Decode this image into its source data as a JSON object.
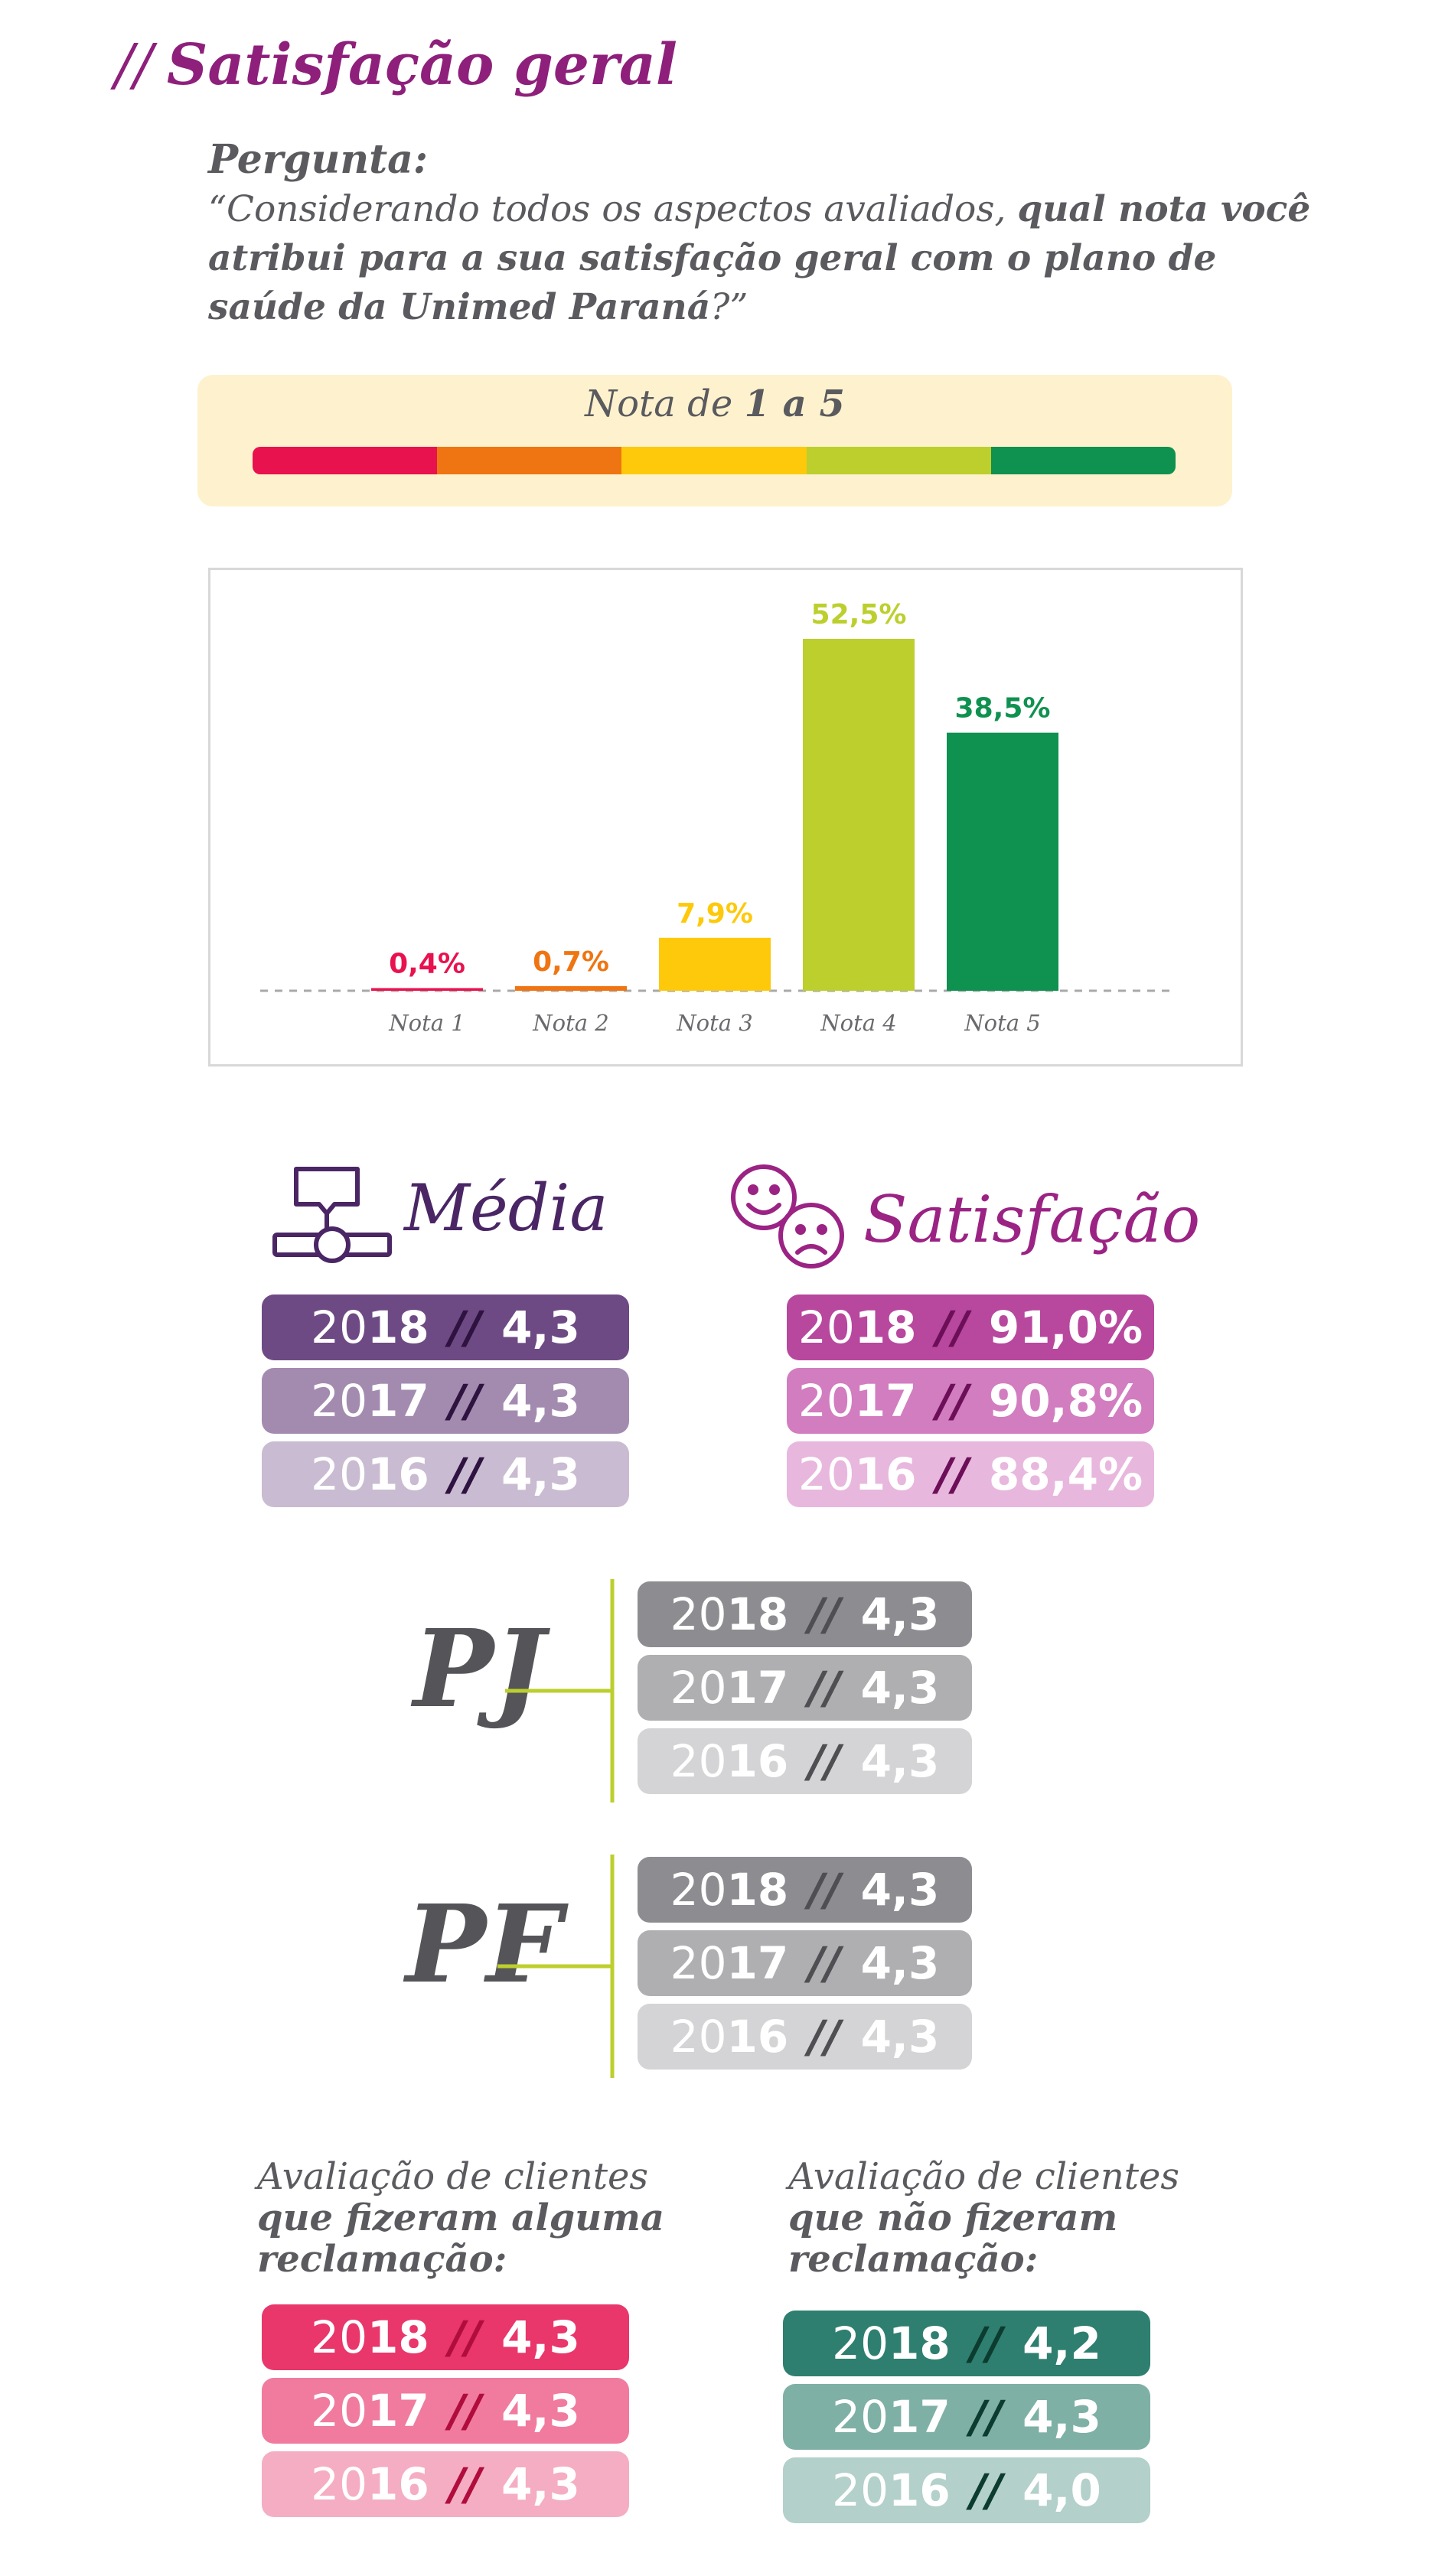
{
  "header": {
    "slashes": "//",
    "title": "Satisfação geral",
    "question_label": "Pergunta:",
    "question_open": "“Considerando todos os aspectos avaliados, ",
    "question_bold": "qual nota você atribui para a sua satisfação geral com o plano de saúde da Unimed Paraná",
    "question_close": "?”"
  },
  "scale": {
    "prefix": "Nota de ",
    "range": "1 a 5",
    "colors": [
      "#e8124f",
      "#ef7512",
      "#fdc90a",
      "#bccf2d",
      "#0f9150"
    ]
  },
  "chart_data": {
    "type": "bar",
    "categories": [
      "Nota 1",
      "Nota 2",
      "Nota 3",
      "Nota 4",
      "Nota 5"
    ],
    "values": [
      0.4,
      0.7,
      7.9,
      52.5,
      38.5
    ],
    "labels": [
      "0,4%",
      "0,7%",
      "7,9%",
      "52,5%",
      "38,5%"
    ],
    "colors": [
      "#e8124f",
      "#ef7512",
      "#fdc90a",
      "#bccf2d",
      "#0f9150"
    ],
    "ylim": [
      0,
      52.5
    ],
    "grid": false,
    "legend": "none"
  },
  "media": {
    "title": "Média",
    "rows": [
      {
        "year": "2018",
        "value": "4,3",
        "bg": "#6e4a84",
        "sep_color": "#2e1240"
      },
      {
        "year": "2017",
        "value": "4,3",
        "bg": "#a38bb0",
        "sep_color": "#2e1240"
      },
      {
        "year": "2016",
        "value": "4,3",
        "bg": "#c9bbd1",
        "sep_color": "#2e1240"
      }
    ]
  },
  "satisfacao": {
    "title": "Satisfação",
    "rows": [
      {
        "year": "2018",
        "value": "91,0%",
        "bg": "#b8479e",
        "sep_color": "#6c0f58"
      },
      {
        "year": "2017",
        "value": "90,8%",
        "bg": "#d17dc0",
        "sep_color": "#6c0f58"
      },
      {
        "year": "2016",
        "value": "88,4%",
        "bg": "#e8b7dd",
        "sep_color": "#6c0f58"
      }
    ]
  },
  "pj": {
    "label": "PJ",
    "rows": [
      {
        "year": "2018",
        "value": "4,3",
        "bg": "#8d8c90",
        "sep_color": "#4f4e52"
      },
      {
        "year": "2017",
        "value": "4,3",
        "bg": "#afaeb1",
        "sep_color": "#4f4e52"
      },
      {
        "year": "2016",
        "value": "4,3",
        "bg": "#d4d3d5",
        "sep_color": "#4f4e52"
      }
    ]
  },
  "pf": {
    "label": "PF",
    "rows": [
      {
        "year": "2018",
        "value": "4,3",
        "bg": "#8d8c90",
        "sep_color": "#4f4e52"
      },
      {
        "year": "2017",
        "value": "4,3",
        "bg": "#afaeb1",
        "sep_color": "#4f4e52"
      },
      {
        "year": "2016",
        "value": "4,3",
        "bg": "#d4d3d5",
        "sep_color": "#4f4e52"
      }
    ]
  },
  "reclamacao": {
    "line1": "Avaliação de clientes",
    "line2": "que fizeram alguma",
    "line3": "reclamação:",
    "rows": [
      {
        "year": "2018",
        "value": "4,3",
        "bg": "#e9366b",
        "sep_color": "#b00d3d"
      },
      {
        "year": "2017",
        "value": "4,3",
        "bg": "#f07b9f",
        "sep_color": "#b00d3d"
      },
      {
        "year": "2016",
        "value": "4,3",
        "bg": "#f5adc3",
        "sep_color": "#b00d3d"
      }
    ]
  },
  "sem_reclamacao": {
    "line1": "Avaliação de clientes",
    "line2": "que não fizeram",
    "line3": "reclamação:",
    "rows": [
      {
        "year": "2018",
        "value": "4,2",
        "bg": "#2e7f6f",
        "sep_color": "#0c3b30"
      },
      {
        "year": "2017",
        "value": "4,3",
        "bg": "#7fb0a6",
        "sep_color": "#0c3b30"
      },
      {
        "year": "2016",
        "value": "4,0",
        "bg": "#b3d0ca",
        "sep_color": "#0c3b30"
      }
    ]
  },
  "accent": {
    "branch_line": "#bccf2d"
  }
}
